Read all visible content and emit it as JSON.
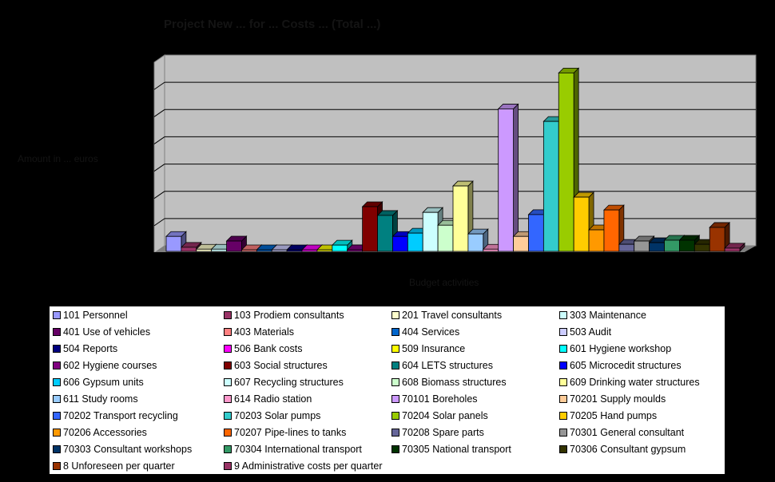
{
  "chart_data": {
    "type": "bar",
    "style": "3d-clustered-column",
    "title": "Project New ... for ... Costs ... (Total ...)",
    "xlabel": "Budget activities",
    "ylabel": "Amount in ... euros",
    "y_unit_note": "Values in gridline units (tick labels not legible; 7 gridline intervals)",
    "ylim": [
      0,
      7
    ],
    "grid": true,
    "legend_position": "bottom",
    "series": [
      {
        "name": "101 Personnel",
        "color": "#9999FF",
        "value": 0.55
      },
      {
        "name": "103 Prodiem consultants",
        "color": "#993366",
        "value": 0.15
      },
      {
        "name": "201 Travel consultants",
        "color": "#FFFFCC",
        "value": 0.08
      },
      {
        "name": "303 Maintenance",
        "color": "#CCFFFF",
        "value": 0.08
      },
      {
        "name": "401 Use of vehicles",
        "color": "#660066",
        "value": 0.38
      },
      {
        "name": "403 Materials",
        "color": "#FF8080",
        "value": 0.05
      },
      {
        "name": "404 Services",
        "color": "#0066CC",
        "value": 0.05
      },
      {
        "name": "503 Audit",
        "color": "#CCCCFF",
        "value": 0.05
      },
      {
        "name": "504 Reports",
        "color": "#000080",
        "value": 0.05
      },
      {
        "name": "506 Bank costs",
        "color": "#FF00FF",
        "value": 0.05
      },
      {
        "name": "509 Insurance",
        "color": "#FFFF00",
        "value": 0.05
      },
      {
        "name": "601 Hygiene workshop",
        "color": "#00FFFF",
        "value": 0.23
      },
      {
        "name": "602 Hygiene courses",
        "color": "#800080",
        "value": 0.06
      },
      {
        "name": "603 Social structures",
        "color": "#800000",
        "value": 1.64
      },
      {
        "name": "604 LETS structures",
        "color": "#008080",
        "value": 1.32
      },
      {
        "name": "605 Microcedit structures",
        "color": "#0000FF",
        "value": 0.55
      },
      {
        "name": "606 Gypsum units",
        "color": "#00CCFF",
        "value": 0.67
      },
      {
        "name": "607 Recycling structures",
        "color": "#CCFFFF",
        "value": 1.43
      },
      {
        "name": "608 Biomass structures",
        "color": "#CCFFCC",
        "value": 0.96
      },
      {
        "name": "609 Drinking water structures",
        "color": "#FFFF99",
        "value": 2.4
      },
      {
        "name": "611 Study rooms",
        "color": "#99CCFF",
        "value": 0.64
      },
      {
        "name": "614 Radio station",
        "color": "#FF99CC",
        "value": 0.08
      },
      {
        "name": "70101 Boreholes",
        "color": "#CC99FF",
        "value": 5.23
      },
      {
        "name": "70201 Supply moulds",
        "color": "#FFCC99",
        "value": 0.55
      },
      {
        "name": "70202 Transport recycling",
        "color": "#3366FF",
        "value": 1.35
      },
      {
        "name": "70203 Solar pumps",
        "color": "#33CCCC",
        "value": 4.77
      },
      {
        "name": "70204 Solar panels",
        "color": "#99CC00",
        "value": 6.55
      },
      {
        "name": "70205 Hand pumps",
        "color": "#FFCC00",
        "value": 1.99
      },
      {
        "name": "70206 Accessories",
        "color": "#FF9900",
        "value": 0.79
      },
      {
        "name": "70207 Pipe-lines to tanks",
        "color": "#FF6600",
        "value": 1.52
      },
      {
        "name": "70208 Spare parts",
        "color": "#666699",
        "value": 0.26
      },
      {
        "name": "70301 General consultant",
        "color": "#969696",
        "value": 0.38
      },
      {
        "name": "70303 Consultant workshops",
        "color": "#003366",
        "value": 0.32
      },
      {
        "name": "70304 International transport",
        "color": "#339966",
        "value": 0.41
      },
      {
        "name": "70305 National transport",
        "color": "#003300",
        "value": 0.41
      },
      {
        "name": "70306 Consultant gypsum",
        "color": "#333300",
        "value": 0.26
      },
      {
        "name": "8 Unforeseen per quarter",
        "color": "#993300",
        "value": 0.88
      },
      {
        "name": "9 Administrative costs per quarter",
        "color": "#993366",
        "value": 0.12
      }
    ]
  },
  "labels": {
    "title": "Project New ... for ... Costs ... (Total ...)",
    "xlabel": "Budget activities",
    "ylabel": "Amount in ... euros"
  }
}
